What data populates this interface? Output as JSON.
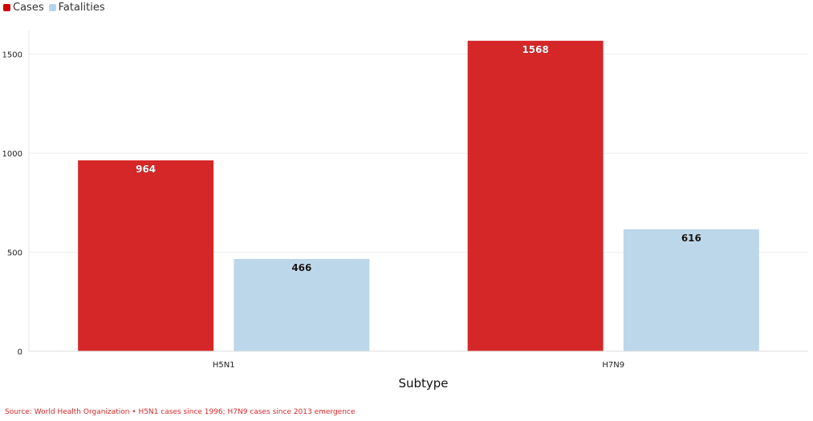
{
  "chart_data": {
    "type": "bar",
    "title": "",
    "xlabel": "Subtype",
    "ylabel": "",
    "categories": [
      "H5N1",
      "H7N9"
    ],
    "series": [
      {
        "name": "Cases",
        "values": [
          964,
          1568
        ],
        "color": "#d62728"
      },
      {
        "name": "Fatalities",
        "values": [
          466,
          616
        ],
        "color": "#bcd7ea"
      }
    ],
    "ylim": [
      0,
      1620
    ],
    "yticks": [
      0,
      500,
      1000,
      1500
    ],
    "grid": true,
    "legend_position": "top-left"
  },
  "legend": {
    "items": [
      {
        "label": "Cases",
        "color": "#d00000"
      },
      {
        "label": "Fatalities",
        "color": "#b7d3ea"
      }
    ]
  },
  "source_note": {
    "text": "Source: World Health Organization • H5N1 cases since 1996; H7N9 cases since 2013 emergence",
    "color": "#d62728"
  }
}
